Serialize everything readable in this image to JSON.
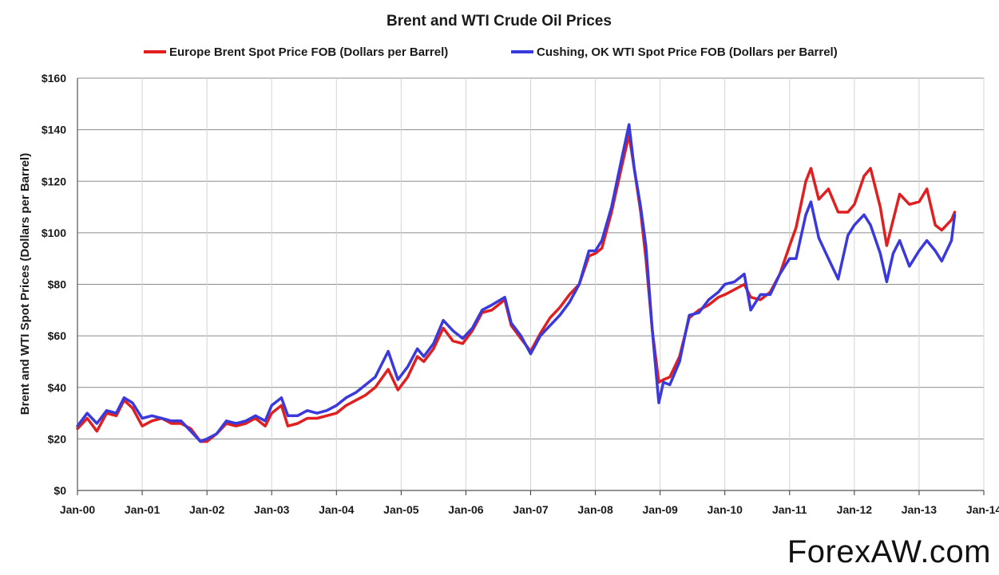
{
  "chart_data": {
    "type": "line",
    "title": "Brent and WTI Crude Oil Prices",
    "ylabel": "Brent and WTI Spot Prices (Dollars per Barrel)",
    "xlabel": "",
    "ylim": [
      0,
      160
    ],
    "yticks": [
      "$0",
      "$20",
      "$40",
      "$60",
      "$80",
      "$100",
      "$120",
      "$140",
      "$160"
    ],
    "xticks": [
      "Jan-00",
      "Jan-01",
      "Jan-02",
      "Jan-03",
      "Jan-04",
      "Jan-05",
      "Jan-06",
      "Jan-07",
      "Jan-08",
      "Jan-09",
      "Jan-10",
      "Jan-11",
      "Jan-12",
      "Jan-13",
      "Jan-14"
    ],
    "grid": true,
    "legend_position": "top",
    "series": [
      {
        "name": "Europe Brent Spot Price FOB  (Dollars per Barrel)",
        "color": "#e02020",
        "points": [
          [
            2000.0,
            24
          ],
          [
            2000.15,
            28
          ],
          [
            2000.3,
            23
          ],
          [
            2000.45,
            30
          ],
          [
            2000.6,
            29
          ],
          [
            2000.72,
            35
          ],
          [
            2000.85,
            32
          ],
          [
            2001.0,
            25
          ],
          [
            2001.15,
            27
          ],
          [
            2001.3,
            28
          ],
          [
            2001.45,
            26
          ],
          [
            2001.6,
            26
          ],
          [
            2001.75,
            24
          ],
          [
            2001.9,
            19
          ],
          [
            2002.0,
            19
          ],
          [
            2002.15,
            22
          ],
          [
            2002.3,
            26
          ],
          [
            2002.45,
            25
          ],
          [
            2002.6,
            26
          ],
          [
            2002.75,
            28
          ],
          [
            2002.9,
            25
          ],
          [
            2003.0,
            30
          ],
          [
            2003.15,
            33
          ],
          [
            2003.25,
            25
          ],
          [
            2003.4,
            26
          ],
          [
            2003.55,
            28
          ],
          [
            2003.7,
            28
          ],
          [
            2003.85,
            29
          ],
          [
            2004.0,
            30
          ],
          [
            2004.15,
            33
          ],
          [
            2004.3,
            35
          ],
          [
            2004.45,
            37
          ],
          [
            2004.6,
            40
          ],
          [
            2004.8,
            47
          ],
          [
            2004.95,
            39
          ],
          [
            2005.1,
            44
          ],
          [
            2005.25,
            52
          ],
          [
            2005.35,
            50
          ],
          [
            2005.5,
            55
          ],
          [
            2005.65,
            63
          ],
          [
            2005.8,
            58
          ],
          [
            2005.95,
            57
          ],
          [
            2006.1,
            62
          ],
          [
            2006.25,
            69
          ],
          [
            2006.4,
            70
          ],
          [
            2006.6,
            74
          ],
          [
            2006.7,
            64
          ],
          [
            2006.85,
            59
          ],
          [
            2007.0,
            54
          ],
          [
            2007.15,
            61
          ],
          [
            2007.3,
            67
          ],
          [
            2007.45,
            71
          ],
          [
            2007.6,
            76
          ],
          [
            2007.75,
            80
          ],
          [
            2007.9,
            91
          ],
          [
            2008.0,
            92
          ],
          [
            2008.1,
            94
          ],
          [
            2008.25,
            108
          ],
          [
            2008.4,
            125
          ],
          [
            2008.52,
            138
          ],
          [
            2008.6,
            125
          ],
          [
            2008.7,
            108
          ],
          [
            2008.78,
            90
          ],
          [
            2008.88,
            62
          ],
          [
            2008.98,
            42
          ],
          [
            2009.05,
            43
          ],
          [
            2009.15,
            44
          ],
          [
            2009.3,
            52
          ],
          [
            2009.45,
            67
          ],
          [
            2009.6,
            70
          ],
          [
            2009.75,
            72
          ],
          [
            2009.9,
            75
          ],
          [
            2010.0,
            76
          ],
          [
            2010.15,
            78
          ],
          [
            2010.3,
            80
          ],
          [
            2010.4,
            75
          ],
          [
            2010.55,
            74
          ],
          [
            2010.7,
            77
          ],
          [
            2010.85,
            84
          ],
          [
            2011.0,
            95
          ],
          [
            2011.1,
            102
          ],
          [
            2011.25,
            120
          ],
          [
            2011.33,
            125
          ],
          [
            2011.45,
            113
          ],
          [
            2011.6,
            117
          ],
          [
            2011.75,
            108
          ],
          [
            2011.9,
            108
          ],
          [
            2012.0,
            111
          ],
          [
            2012.15,
            122
          ],
          [
            2012.25,
            125
          ],
          [
            2012.4,
            110
          ],
          [
            2012.5,
            95
          ],
          [
            2012.6,
            105
          ],
          [
            2012.7,
            115
          ],
          [
            2012.85,
            111
          ],
          [
            2013.0,
            112
          ],
          [
            2013.12,
            117
          ],
          [
            2013.25,
            103
          ],
          [
            2013.35,
            101
          ],
          [
            2013.5,
            105
          ],
          [
            2013.55,
            108
          ]
        ]
      },
      {
        "name": "Cushing, OK WTI Spot Price FOB  (Dollars per Barrel)",
        "color": "#3a3adc",
        "points": [
          [
            2000.0,
            25
          ],
          [
            2000.15,
            30
          ],
          [
            2000.3,
            26
          ],
          [
            2000.45,
            31
          ],
          [
            2000.6,
            30
          ],
          [
            2000.72,
            36
          ],
          [
            2000.85,
            34
          ],
          [
            2001.0,
            28
          ],
          [
            2001.15,
            29
          ],
          [
            2001.3,
            28
          ],
          [
            2001.45,
            27
          ],
          [
            2001.6,
            27
          ],
          [
            2001.75,
            23
          ],
          [
            2001.9,
            19
          ],
          [
            2002.0,
            20
          ],
          [
            2002.15,
            22
          ],
          [
            2002.3,
            27
          ],
          [
            2002.45,
            26
          ],
          [
            2002.6,
            27
          ],
          [
            2002.75,
            29
          ],
          [
            2002.9,
            27
          ],
          [
            2003.0,
            33
          ],
          [
            2003.15,
            36
          ],
          [
            2003.25,
            29
          ],
          [
            2003.4,
            29
          ],
          [
            2003.55,
            31
          ],
          [
            2003.7,
            30
          ],
          [
            2003.85,
            31
          ],
          [
            2004.0,
            33
          ],
          [
            2004.15,
            36
          ],
          [
            2004.3,
            38
          ],
          [
            2004.45,
            41
          ],
          [
            2004.6,
            44
          ],
          [
            2004.8,
            54
          ],
          [
            2004.95,
            43
          ],
          [
            2005.1,
            48
          ],
          [
            2005.25,
            55
          ],
          [
            2005.35,
            52
          ],
          [
            2005.5,
            57
          ],
          [
            2005.65,
            66
          ],
          [
            2005.8,
            62
          ],
          [
            2005.95,
            59
          ],
          [
            2006.1,
            63
          ],
          [
            2006.25,
            70
          ],
          [
            2006.4,
            72
          ],
          [
            2006.6,
            75
          ],
          [
            2006.7,
            65
          ],
          [
            2006.85,
            60
          ],
          [
            2007.0,
            53
          ],
          [
            2007.15,
            60
          ],
          [
            2007.3,
            64
          ],
          [
            2007.45,
            68
          ],
          [
            2007.6,
            73
          ],
          [
            2007.75,
            80
          ],
          [
            2007.9,
            93
          ],
          [
            2008.0,
            93
          ],
          [
            2008.1,
            97
          ],
          [
            2008.25,
            110
          ],
          [
            2008.4,
            128
          ],
          [
            2008.52,
            142
          ],
          [
            2008.6,
            125
          ],
          [
            2008.7,
            110
          ],
          [
            2008.78,
            95
          ],
          [
            2008.88,
            62
          ],
          [
            2008.98,
            34
          ],
          [
            2009.05,
            42
          ],
          [
            2009.15,
            41
          ],
          [
            2009.3,
            50
          ],
          [
            2009.45,
            68
          ],
          [
            2009.6,
            69
          ],
          [
            2009.75,
            74
          ],
          [
            2009.9,
            77
          ],
          [
            2010.0,
            80
          ],
          [
            2010.15,
            81
          ],
          [
            2010.3,
            84
          ],
          [
            2010.4,
            70
          ],
          [
            2010.55,
            76
          ],
          [
            2010.7,
            76
          ],
          [
            2010.85,
            84
          ],
          [
            2011.0,
            90
          ],
          [
            2011.1,
            90
          ],
          [
            2011.25,
            107
          ],
          [
            2011.33,
            112
          ],
          [
            2011.45,
            98
          ],
          [
            2011.6,
            90
          ],
          [
            2011.75,
            82
          ],
          [
            2011.9,
            99
          ],
          [
            2012.0,
            103
          ],
          [
            2012.15,
            107
          ],
          [
            2012.25,
            103
          ],
          [
            2012.4,
            92
          ],
          [
            2012.5,
            81
          ],
          [
            2012.6,
            92
          ],
          [
            2012.7,
            97
          ],
          [
            2012.85,
            87
          ],
          [
            2013.0,
            93
          ],
          [
            2013.12,
            97
          ],
          [
            2013.25,
            93
          ],
          [
            2013.35,
            89
          ],
          [
            2013.5,
            97
          ],
          [
            2013.55,
            107
          ]
        ]
      }
    ]
  },
  "watermark": "ForexAW.com"
}
